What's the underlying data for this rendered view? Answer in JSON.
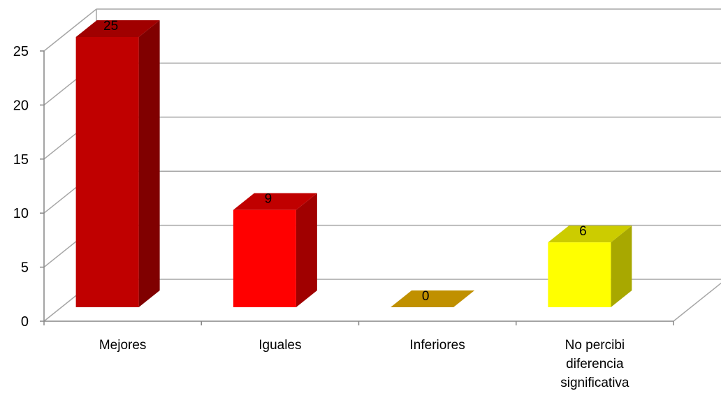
{
  "chart_data": {
    "type": "bar",
    "categories": [
      [
        "Mejores"
      ],
      [
        "Iguales"
      ],
      [
        "Inferiores"
      ],
      [
        "No percibi",
        "diferencia",
        "significativa"
      ]
    ],
    "values": [
      25,
      9,
      0,
      6
    ],
    "data_labels": [
      "25",
      "9",
      "0",
      "6"
    ],
    "y_ticks": [
      "0",
      "5",
      "10",
      "15",
      "20",
      "25"
    ],
    "ylim": [
      0,
      25
    ],
    "grid": true,
    "legend": "none",
    "bar_colors": [
      {
        "front": "#C00000",
        "top": "#A00000",
        "side": "#800000"
      },
      {
        "front": "#FF0000",
        "top": "#C00000",
        "side": "#A00000"
      },
      {
        "front": "#C09000",
        "top": "#C09000",
        "side": "#A07800"
      },
      {
        "front": "#FFFF00",
        "top": "#CCCC00",
        "side": "#A8A800"
      }
    ],
    "gridline_color": "#A6A6A6",
    "axis_color": "#868686"
  }
}
